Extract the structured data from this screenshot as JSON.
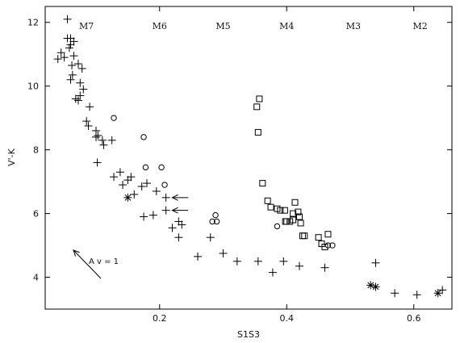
{
  "chart_data": {
    "type": "scatter",
    "title": "",
    "xlabel": "S1S3",
    "ylabel": "V'-K",
    "xlim": [
      0.02,
      0.66
    ],
    "ylim": [
      3.0,
      12.5
    ],
    "xticks": [
      0.2,
      0.4,
      0.6
    ],
    "xtick_labels": [
      "0.2",
      "0.4",
      "0.6"
    ],
    "yticks": [
      4,
      6,
      8,
      10,
      12
    ],
    "ytick_labels": [
      "4",
      "6",
      "8",
      "10",
      "12"
    ],
    "grid": false,
    "spectral_bands": [
      {
        "label": "M7",
        "x": 0.085
      },
      {
        "label": "M6",
        "x": 0.2
      },
      {
        "label": "M5",
        "x": 0.3
      },
      {
        "label": "M4",
        "x": 0.4
      },
      {
        "label": "M3",
        "x": 0.505
      },
      {
        "label": "M2",
        "x": 0.61
      }
    ],
    "reddening_vector": {
      "label": "A v = 1",
      "from": [
        0.07,
        4.7
      ],
      "to": [
        0.052,
        4.9
      ]
    },
    "arrows": [
      {
        "from": [
          0.25,
          6.5
        ],
        "to": [
          0.225,
          6.5
        ]
      },
      {
        "from": [
          0.25,
          6.1
        ],
        "to": [
          0.225,
          6.1
        ]
      }
    ],
    "series": [
      {
        "marker": "plus",
        "x": [
          0.055,
          0.06,
          0.065,
          0.055,
          0.06,
          0.058,
          0.045,
          0.04,
          0.05,
          0.065,
          0.072,
          0.062,
          0.078,
          0.075,
          0.06,
          0.063,
          0.068,
          0.08,
          0.09,
          0.072,
          0.075,
          0.085,
          0.088,
          0.1,
          0.103,
          0.1,
          0.11,
          0.112,
          0.125,
          0.102,
          0.128,
          0.138,
          0.15,
          0.142,
          0.155,
          0.172,
          0.16,
          0.18,
          0.195,
          0.21,
          0.21,
          0.19,
          0.175,
          0.23,
          0.235,
          0.22,
          0.23,
          0.26,
          0.28,
          0.3,
          0.322,
          0.355,
          0.395,
          0.42,
          0.46,
          0.54,
          0.57,
          0.605,
          0.645,
          0.378
        ],
        "y": [
          12.1,
          11.5,
          11.4,
          11.5,
          11.3,
          11.2,
          11.05,
          10.85,
          10.9,
          10.95,
          10.7,
          10.65,
          10.55,
          10.1,
          10.2,
          10.35,
          9.6,
          9.9,
          9.35,
          9.55,
          9.7,
          8.9,
          8.75,
          8.6,
          8.45,
          8.4,
          8.3,
          8.15,
          8.3,
          7.6,
          7.15,
          7.3,
          7.05,
          6.9,
          7.15,
          6.85,
          6.6,
          6.95,
          6.7,
          6.5,
          6.1,
          5.95,
          5.9,
          5.75,
          5.65,
          5.55,
          5.25,
          4.65,
          5.25,
          4.75,
          4.5,
          4.5,
          4.5,
          4.35,
          4.3,
          4.45,
          3.5,
          3.45,
          3.6,
          4.15
        ]
      },
      {
        "marker": "circle",
        "x": [
          0.128,
          0.175,
          0.178,
          0.203,
          0.208,
          0.283,
          0.288,
          0.29,
          0.385,
          0.465,
          0.472
        ],
        "y": [
          9.0,
          8.4,
          7.45,
          7.45,
          6.9,
          5.75,
          5.95,
          5.75,
          5.6,
          5.0,
          5.0
        ]
      },
      {
        "marker": "square",
        "x": [
          0.357,
          0.353,
          0.355,
          0.362,
          0.37,
          0.375,
          0.385,
          0.39,
          0.397,
          0.4,
          0.405,
          0.41,
          0.41,
          0.413,
          0.418,
          0.42,
          0.422,
          0.425,
          0.428,
          0.398,
          0.45,
          0.455,
          0.46,
          0.465
        ],
        "y": [
          9.6,
          9.35,
          8.55,
          6.95,
          6.4,
          6.2,
          6.15,
          6.1,
          6.1,
          5.75,
          5.75,
          5.8,
          6.0,
          6.35,
          6.05,
          5.9,
          5.7,
          5.3,
          5.3,
          5.75,
          5.25,
          5.05,
          4.95,
          5.35
        ]
      },
      {
        "marker": "asterisk",
        "x": [
          0.15,
          0.532,
          0.54,
          0.638
        ],
        "y": [
          6.5,
          3.75,
          3.7,
          3.5
        ]
      }
    ]
  }
}
